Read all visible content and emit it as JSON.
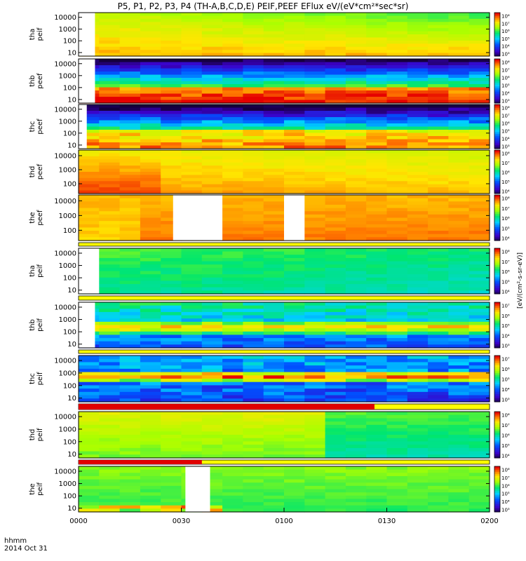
{
  "title": "P5, P1, P2, P3, P4 (TH-A,B,C,D,E) PEIF,PEEF EFlux eV/(eV*cm²*sec*sr)",
  "footer": {
    "time_label": "hhmm",
    "date": "2014 Oct 31"
  },
  "colorbar_units": "[eV/(cm²-s-sr-eV)]",
  "chart_data": {
    "type": "heatmap",
    "x_axis": {
      "range": [
        "0000",
        "0200"
      ],
      "tick_labels": [
        "0000",
        "0030",
        "0100",
        "0130",
        "0200"
      ]
    },
    "y_axis_scale": "log",
    "panels": [
      {
        "probe": "tha",
        "product": "peif",
        "yticks": [
          "10000",
          "1000",
          "100",
          "10"
        ],
        "ylim": [
          5,
          25000
        ],
        "cb_labels": [
          "10⁸",
          "10⁷",
          "10⁶",
          "10⁵",
          "10⁴",
          "10³"
        ],
        "data_gaps": [
          [
            0.0,
            0.04
          ]
        ],
        "fill_profile": "tha_ion"
      },
      {
        "probe": "thb",
        "product": "peef",
        "yticks": [
          "10000",
          "1000",
          "100",
          "10"
        ],
        "ylim": [
          5,
          25000
        ],
        "cb_labels": [
          "10⁸",
          "10⁷",
          "10⁶",
          "10⁵",
          "10⁴",
          "10³"
        ],
        "data_gaps": [
          [
            0.0,
            0.04
          ]
        ],
        "fill_profile": "thb_electron"
      },
      {
        "probe": "thc",
        "product": "peef",
        "yticks": [
          "10000",
          "1000",
          "100",
          "10"
        ],
        "ylim": [
          5,
          25000
        ],
        "cb_labels": [
          "10⁸",
          "10⁷",
          "10⁶",
          "10⁵",
          "10⁴",
          "10³"
        ],
        "data_gaps": [
          [
            0.0,
            0.02
          ]
        ],
        "fill_profile": "thc_electron"
      },
      {
        "probe": "thd",
        "product": "peef",
        "yticks": [
          "10000",
          "1000",
          "100"
        ],
        "ylim": [
          20,
          25000
        ],
        "cb_labels": [
          "10⁸",
          "10⁷",
          "10⁶",
          "10⁵",
          "10⁴"
        ],
        "data_gaps": [],
        "fill_profile": "thd_electron"
      },
      {
        "probe": "the",
        "product": "peef",
        "yticks": [
          "10000",
          "1000",
          "100"
        ],
        "ylim": [
          20,
          25000
        ],
        "cb_labels": [
          "10⁸",
          "10⁷",
          "10⁶",
          "10⁵",
          "10⁴"
        ],
        "data_gaps": [
          [
            0.23,
            0.35
          ],
          [
            0.5,
            0.55
          ]
        ],
        "fill_profile": "the_electron"
      },
      {
        "probe": "tha",
        "product": "peif",
        "yticks": [
          "10000",
          "1000",
          "100",
          "10"
        ],
        "ylim": [
          5,
          25000
        ],
        "cb_labels": [
          "10⁸",
          "10⁷",
          "10⁶",
          "10⁵",
          "10⁴"
        ],
        "data_gaps": [
          [
            0.0,
            0.05
          ]
        ],
        "fill_profile": "tha_ion2"
      },
      {
        "probe": "thb",
        "product": "peif",
        "yticks": [
          "10000",
          "1000",
          "100",
          "10"
        ],
        "ylim": [
          5,
          25000
        ],
        "cb_labels": [
          "10⁷",
          "10⁶",
          "10⁵",
          "10⁴",
          "10³"
        ],
        "data_gaps": [
          [
            0.0,
            0.04
          ]
        ],
        "fill_profile": "thb_ion"
      },
      {
        "probe": "thc",
        "product": "peif",
        "yticks": [
          "10000",
          "1000",
          "100",
          "10"
        ],
        "ylim": [
          5,
          25000
        ],
        "cb_labels": [
          "10⁷",
          "10⁶",
          "10⁵",
          "10⁴",
          "10³"
        ],
        "data_gaps": [],
        "fill_profile": "thc_ion"
      },
      {
        "probe": "thd",
        "product": "peif",
        "yticks": [
          "10000",
          "1000",
          "100",
          "10"
        ],
        "ylim": [
          5,
          25000
        ],
        "cb_labels": [
          "10⁸",
          "10⁷",
          "10⁶",
          "10⁵",
          "10⁴"
        ],
        "data_gaps": [],
        "fill_profile": "thd_ion"
      },
      {
        "probe": "the",
        "product": "peif",
        "yticks": [
          "10000",
          "1000",
          "100",
          "10"
        ],
        "ylim": [
          5,
          25000
        ],
        "cb_labels": [
          "10⁸",
          "10⁷",
          "10⁶",
          "10⁵",
          "10⁴",
          "10³"
        ],
        "data_gaps": [
          [
            0.26,
            0.32
          ]
        ],
        "fill_profile": "the_ion"
      }
    ]
  }
}
